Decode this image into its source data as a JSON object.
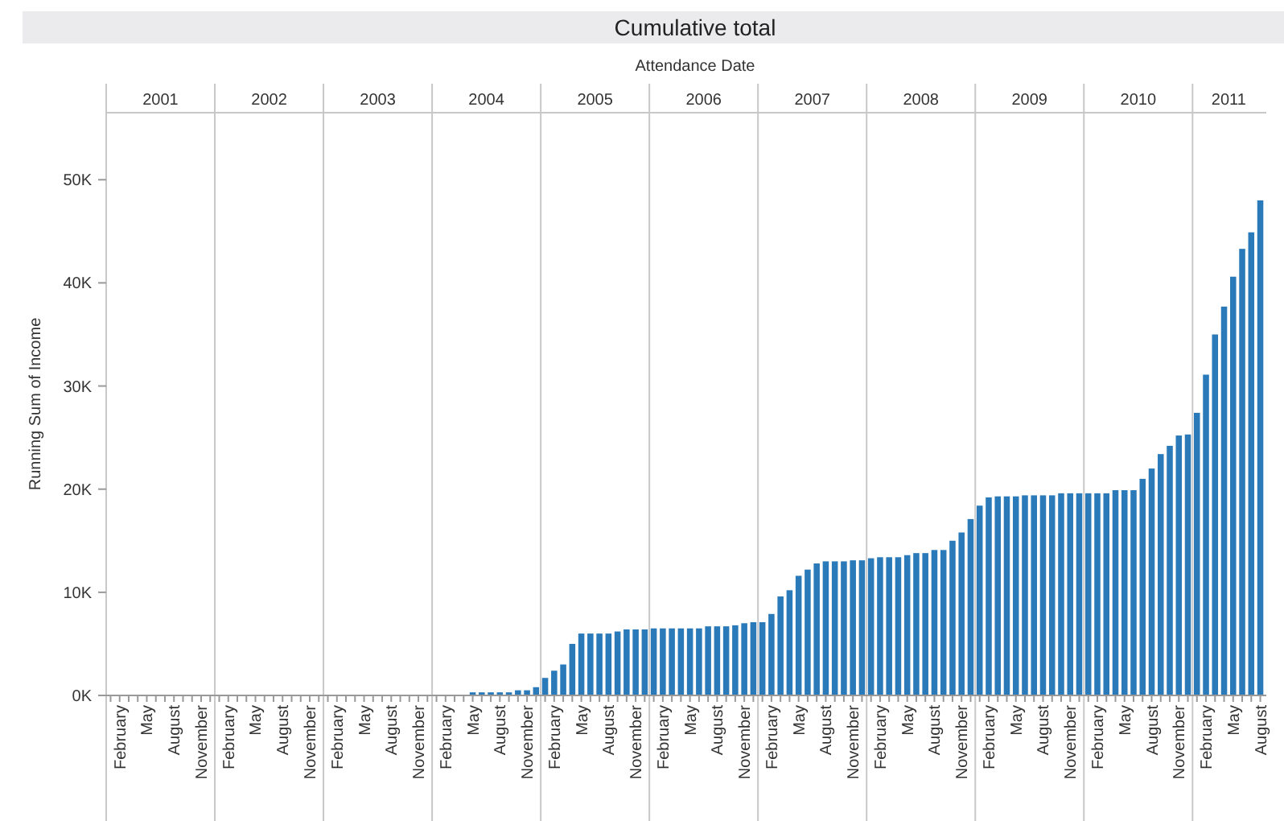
{
  "chart_data": {
    "type": "bar",
    "title": "Cumulative total",
    "xlabel": "Attendance Date",
    "ylabel": "Running Sum of Income",
    "annotations": [
      "2001",
      "2002",
      "2003",
      "2004",
      "2005",
      "2006",
      "2007",
      "2008",
      "2009",
      "2010",
      "2011"
    ],
    "categories": [
      null,
      "February",
      null,
      null,
      "May",
      null,
      null,
      "August",
      null,
      null,
      "November",
      null,
      null,
      "February",
      null,
      null,
      "May",
      null,
      null,
      "August",
      null,
      null,
      "November",
      null,
      null,
      "February",
      null,
      null,
      "May",
      null,
      null,
      "August",
      null,
      null,
      "November",
      null,
      null,
      "February",
      null,
      null,
      "May",
      null,
      null,
      "August",
      null,
      null,
      "November",
      null,
      null,
      "February",
      null,
      null,
      "May",
      null,
      null,
      "August",
      null,
      null,
      "November",
      null,
      null,
      "February",
      null,
      null,
      "May",
      null,
      null,
      "August",
      null,
      null,
      "November",
      null,
      null,
      "February",
      null,
      null,
      "May",
      null,
      null,
      "August",
      null,
      null,
      "November",
      null,
      null,
      "February",
      null,
      null,
      "May",
      null,
      null,
      "August",
      null,
      null,
      "November",
      null,
      null,
      "February",
      null,
      null,
      "May",
      null,
      null,
      "August",
      null,
      null,
      "November",
      null,
      null,
      "February",
      null,
      null,
      "May",
      null,
      null,
      "August",
      null,
      null,
      "November",
      null,
      null,
      "February",
      null,
      null,
      "May",
      null,
      null,
      "August"
    ],
    "values": [
      0,
      0,
      0,
      0,
      0,
      0,
      0,
      0,
      0,
      0,
      0,
      0,
      0,
      0,
      0,
      0,
      0,
      0,
      0,
      0,
      0,
      0,
      0,
      0,
      0,
      0,
      0,
      0,
      0,
      0,
      0,
      0,
      0,
      0,
      0,
      0,
      0,
      0,
      0,
      0,
      300,
      300,
      300,
      300,
      300,
      500,
      500,
      800,
      1700,
      2400,
      3000,
      5000,
      6000,
      6000,
      6000,
      6000,
      6200,
      6400,
      6400,
      6400,
      6500,
      6500,
      6500,
      6500,
      6500,
      6500,
      6700,
      6700,
      6700,
      6800,
      7000,
      7100,
      7100,
      7900,
      9600,
      10200,
      11600,
      12200,
      12800,
      13000,
      13000,
      13000,
      13100,
      13100,
      13300,
      13400,
      13400,
      13400,
      13600,
      13800,
      13800,
      14100,
      14100,
      15000,
      15800,
      17100,
      18400,
      19200,
      19300,
      19300,
      19300,
      19400,
      19400,
      19400,
      19400,
      19600,
      19600,
      19600,
      19600,
      19600,
      19600,
      19900,
      19900,
      19900,
      21000,
      22000,
      23400,
      24200,
      25200,
      25300,
      27400,
      31100,
      35000,
      37700,
      40600,
      43300,
      44900,
      48000
    ],
    "color": "#2a7ab9",
    "ylim": [
      0,
      56500
    ],
    "yticks": [
      {
        "value": 0,
        "label": "0K"
      },
      {
        "value": 10000,
        "label": "10K"
      },
      {
        "value": 20000,
        "label": "20K"
      },
      {
        "value": 30000,
        "label": "30K"
      },
      {
        "value": 40000,
        "label": "40K"
      },
      {
        "value": 50000,
        "label": "50K"
      }
    ]
  }
}
